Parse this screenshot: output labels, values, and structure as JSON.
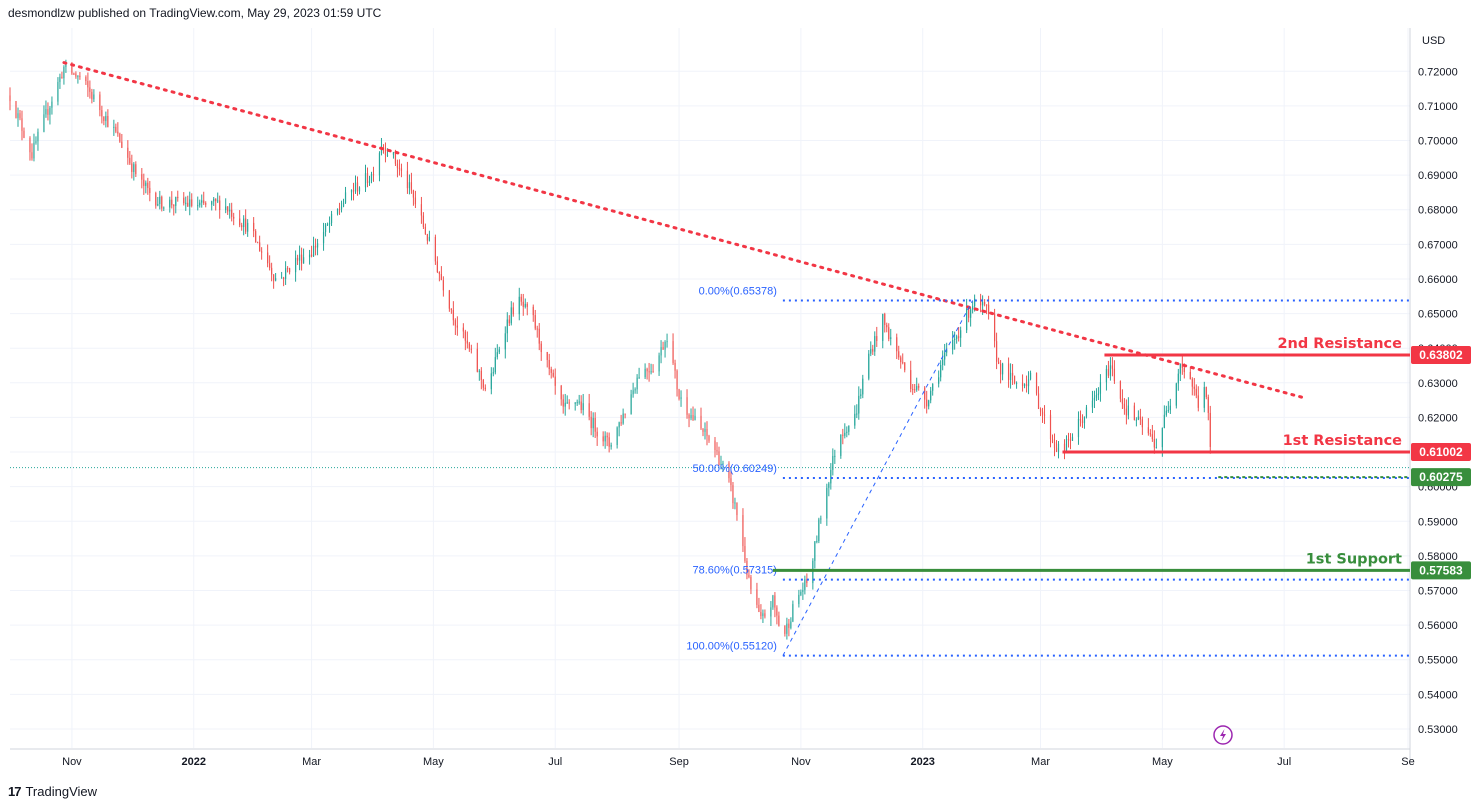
{
  "header": {
    "text": "desmondlzw published on TradingView.com, May 29, 2023 01:59 UTC"
  },
  "footer": {
    "logo": "17",
    "brand": "TradingView"
  },
  "colors": {
    "bull": "#26a69a",
    "bear": "#ef5350",
    "resistance": "#f23645",
    "support": "#388e3c",
    "fib": "#2962ff",
    "trend": "#f23645"
  },
  "chart_data": {
    "type": "candlestick",
    "currency": "USD",
    "y_ticks": [
      "0.72000",
      "0.71000",
      "0.70000",
      "0.69000",
      "0.68000",
      "0.67000",
      "0.66000",
      "0.65000",
      "0.64000",
      "0.63000",
      "0.62000",
      "0.61000",
      "0.60000",
      "0.59000",
      "0.58000",
      "0.57000",
      "0.56000",
      "0.55000",
      "0.54000",
      "0.53000"
    ],
    "y_tick_values": [
      0.72,
      0.71,
      0.7,
      0.69,
      0.68,
      0.67,
      0.66,
      0.65,
      0.64,
      0.63,
      0.62,
      0.61,
      0.6,
      0.59,
      0.58,
      0.57,
      0.56,
      0.55,
      0.54,
      0.53
    ],
    "ylim": [
      0.5245,
      0.7325
    ],
    "x_range": [
      "2021-10-01",
      "2023-09-02"
    ],
    "x_ticks": [
      {
        "label": "Nov",
        "date": "2021-11-01"
      },
      {
        "label": "2022",
        "date": "2022-01-01"
      },
      {
        "label": "Mar",
        "date": "2022-03-01"
      },
      {
        "label": "May",
        "date": "2022-05-01"
      },
      {
        "label": "Jul",
        "date": "2022-07-01"
      },
      {
        "label": "Sep",
        "date": "2022-09-01"
      },
      {
        "label": "Nov",
        "date": "2022-11-01"
      },
      {
        "label": "2023",
        "date": "2023-01-01"
      },
      {
        "label": "Mar",
        "date": "2023-03-01"
      },
      {
        "label": "May",
        "date": "2023-05-01"
      },
      {
        "label": "Jul",
        "date": "2023-07-01"
      },
      {
        "label": "Se",
        "date": "2023-09-01"
      }
    ],
    "price_path": [
      [
        "2021-10-01",
        0.713
      ],
      [
        "2021-10-12",
        0.696
      ],
      [
        "2021-10-20",
        0.709
      ],
      [
        "2021-10-28",
        0.721
      ],
      [
        "2021-11-05",
        0.718
      ],
      [
        "2021-11-10",
        0.714
      ],
      [
        "2021-11-25",
        0.7
      ],
      [
        "2021-12-05",
        0.688
      ],
      [
        "2021-12-15",
        0.682
      ],
      [
        "2021-12-25",
        0.682
      ],
      [
        "2022-01-05",
        0.681
      ],
      [
        "2022-01-15",
        0.682
      ],
      [
        "2022-01-28",
        0.675
      ],
      [
        "2022-02-05",
        0.667
      ],
      [
        "2022-02-12",
        0.659
      ],
      [
        "2022-02-20",
        0.665
      ],
      [
        "2022-03-01",
        0.668
      ],
      [
        "2022-03-10",
        0.676
      ],
      [
        "2022-03-20",
        0.685
      ],
      [
        "2022-03-31",
        0.69
      ],
      [
        "2022-04-05",
        0.699
      ],
      [
        "2022-04-10",
        0.696
      ],
      [
        "2022-04-20",
        0.685
      ],
      [
        "2022-04-28",
        0.672
      ],
      [
        "2022-05-05",
        0.66
      ],
      [
        "2022-05-12",
        0.648
      ],
      [
        "2022-05-20",
        0.638
      ],
      [
        "2022-05-28",
        0.627
      ],
      [
        "2022-06-05",
        0.645
      ],
      [
        "2022-06-12",
        0.654
      ],
      [
        "2022-06-20",
        0.648
      ],
      [
        "2022-06-28",
        0.633
      ],
      [
        "2022-07-05",
        0.622
      ],
      [
        "2022-07-12",
        0.625
      ],
      [
        "2022-07-20",
        0.618
      ],
      [
        "2022-07-28",
        0.612
      ],
      [
        "2022-08-05",
        0.622
      ],
      [
        "2022-08-12",
        0.633
      ],
      [
        "2022-08-20",
        0.635
      ],
      [
        "2022-08-26",
        0.644
      ],
      [
        "2022-09-01",
        0.626
      ],
      [
        "2022-09-10",
        0.618
      ],
      [
        "2022-09-18",
        0.612
      ],
      [
        "2022-09-25",
        0.603
      ],
      [
        "2022-10-01",
        0.59
      ],
      [
        "2022-10-06",
        0.572
      ],
      [
        "2022-10-12",
        0.561
      ],
      [
        "2022-10-18",
        0.567
      ],
      [
        "2022-10-23",
        0.556
      ],
      [
        "2022-10-30",
        0.568
      ],
      [
        "2022-11-05",
        0.573
      ],
      [
        "2022-11-12",
        0.595
      ],
      [
        "2022-11-20",
        0.615
      ],
      [
        "2022-11-28",
        0.62
      ],
      [
        "2022-12-05",
        0.638
      ],
      [
        "2022-12-12",
        0.648
      ],
      [
        "2022-12-18",
        0.64
      ],
      [
        "2022-12-26",
        0.63
      ],
      [
        "2023-01-03",
        0.625
      ],
      [
        "2023-01-10",
        0.635
      ],
      [
        "2023-01-20",
        0.646
      ],
      [
        "2023-01-26",
        0.653
      ],
      [
        "2023-02-02",
        0.651
      ],
      [
        "2023-02-08",
        0.635
      ],
      [
        "2023-02-16",
        0.63
      ],
      [
        "2023-02-24",
        0.631
      ],
      [
        "2023-03-02",
        0.621
      ],
      [
        "2023-03-08",
        0.612
      ],
      [
        "2023-03-12",
        0.61
      ],
      [
        "2023-03-20",
        0.618
      ],
      [
        "2023-03-28",
        0.625
      ],
      [
        "2023-04-05",
        0.635
      ],
      [
        "2023-04-12",
        0.623
      ],
      [
        "2023-04-20",
        0.618
      ],
      [
        "2023-04-28",
        0.612
      ],
      [
        "2023-05-05",
        0.625
      ],
      [
        "2023-05-10",
        0.636
      ],
      [
        "2023-05-15",
        0.631
      ],
      [
        "2023-05-19",
        0.624
      ],
      [
        "2023-05-22",
        0.629
      ],
      [
        "2023-05-24",
        0.62
      ],
      [
        "2023-05-26",
        0.603
      ]
    ],
    "trendline": {
      "from": [
        "2021-10-28",
        0.7225
      ],
      "to": [
        "2023-07-12",
        0.6255
      ]
    },
    "levels": [
      {
        "name": "2nd Resistance",
        "value": 0.63802,
        "label": "0.63802",
        "color": "#f23645",
        "start": "2023-04-02",
        "style": "solid"
      },
      {
        "name": "1st Resistance",
        "value": 0.61002,
        "label": "0.61002",
        "color": "#f23645",
        "start": "2023-03-12",
        "style": "solid"
      },
      {
        "name": "1st Support",
        "value": 0.57583,
        "label": "0.57583",
        "color": "#388e3c",
        "start": "2022-10-18",
        "style": "solid"
      },
      {
        "name": "",
        "value": 0.60275,
        "label": "0.60275",
        "color": "#388e3c",
        "start": "2023-05-29",
        "style": "dashed"
      }
    ],
    "fibonacci": {
      "from": [
        "2022-10-23",
        0.5512
      ],
      "to": [
        "2023-01-26",
        0.65378
      ],
      "start": "2022-10-23",
      "levels": [
        {
          "label": "0.00%(0.65378)",
          "value": 0.65378
        },
        {
          "label": "50.00%(0.60249)",
          "value": 0.60249
        },
        {
          "label": "78.60%(0.57315)",
          "value": 0.57315
        },
        {
          "label": "100.00%(0.55120)",
          "value": 0.5512
        }
      ]
    },
    "last_price": 0.6055,
    "annotations": [
      "2nd Resistance",
      "1st Resistance",
      "1st Support"
    ]
  }
}
